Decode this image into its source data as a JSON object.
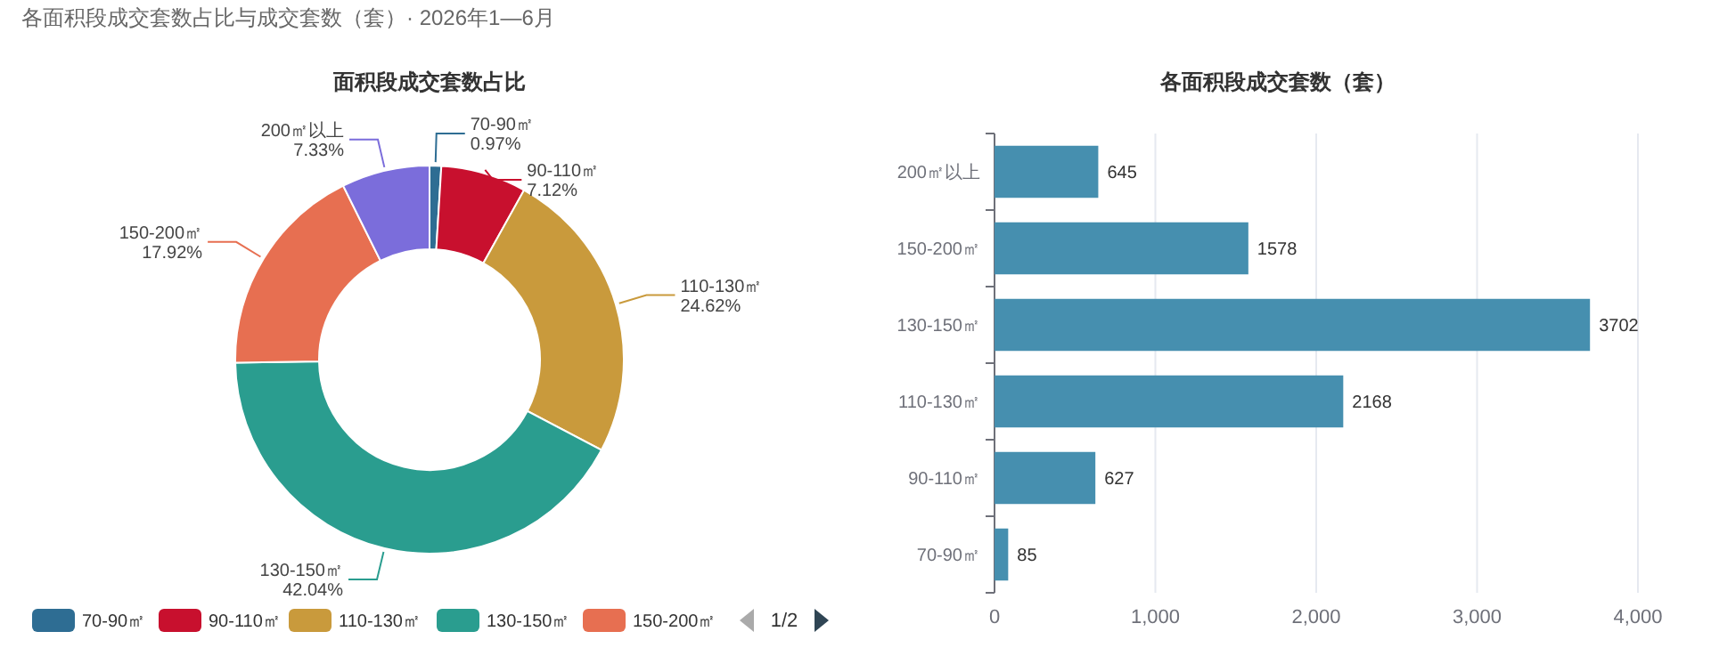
{
  "chart_data": [
    {
      "type": "donut",
      "subtitle": "各面积段成交套数占比与成交套数（套）· 2026年1—6月",
      "title": "面积段成交套数占比",
      "categories": [
        "70-90㎡",
        "90-110㎡",
        "110-130㎡",
        "130-150㎡",
        "150-200㎡",
        "200㎡以上"
      ],
      "values": [
        0.97,
        7.12,
        24.62,
        42.04,
        17.92,
        7.33
      ],
      "colors": [
        "#2e6d93",
        "#c8102e",
        "#c99a3c",
        "#2a9d8f",
        "#e76f51",
        "#7b6ddb"
      ],
      "value_labels": [
        "0.97%",
        "7.12%",
        "24.62%",
        "42.04%",
        "17.92%",
        "7.33%"
      ],
      "legend": "bottom",
      "annotations": [
        "1/2"
      ]
    },
    {
      "type": "bar",
      "orientation": "horizontal",
      "title": "各面积段成交套数（套）",
      "categories": [
        "200㎡以上",
        "150-200㎡",
        "130-150㎡",
        "110-130㎡",
        "90-110㎡",
        "70-90㎡"
      ],
      "values": [
        645,
        1578,
        3702,
        2168,
        627,
        85
      ],
      "color": "#468faf",
      "xlim": [
        0,
        4000
      ],
      "xticks": [
        0,
        {
          "value": 1000,
          "label": "1,000"
        },
        {
          "value": 2000,
          "label": "2,000"
        },
        {
          "value": 3000,
          "label": "3,000"
        },
        {
          "value": 4000,
          "label": "4,000"
        }
      ],
      "grid": "x",
      "data_labels": true
    }
  ]
}
